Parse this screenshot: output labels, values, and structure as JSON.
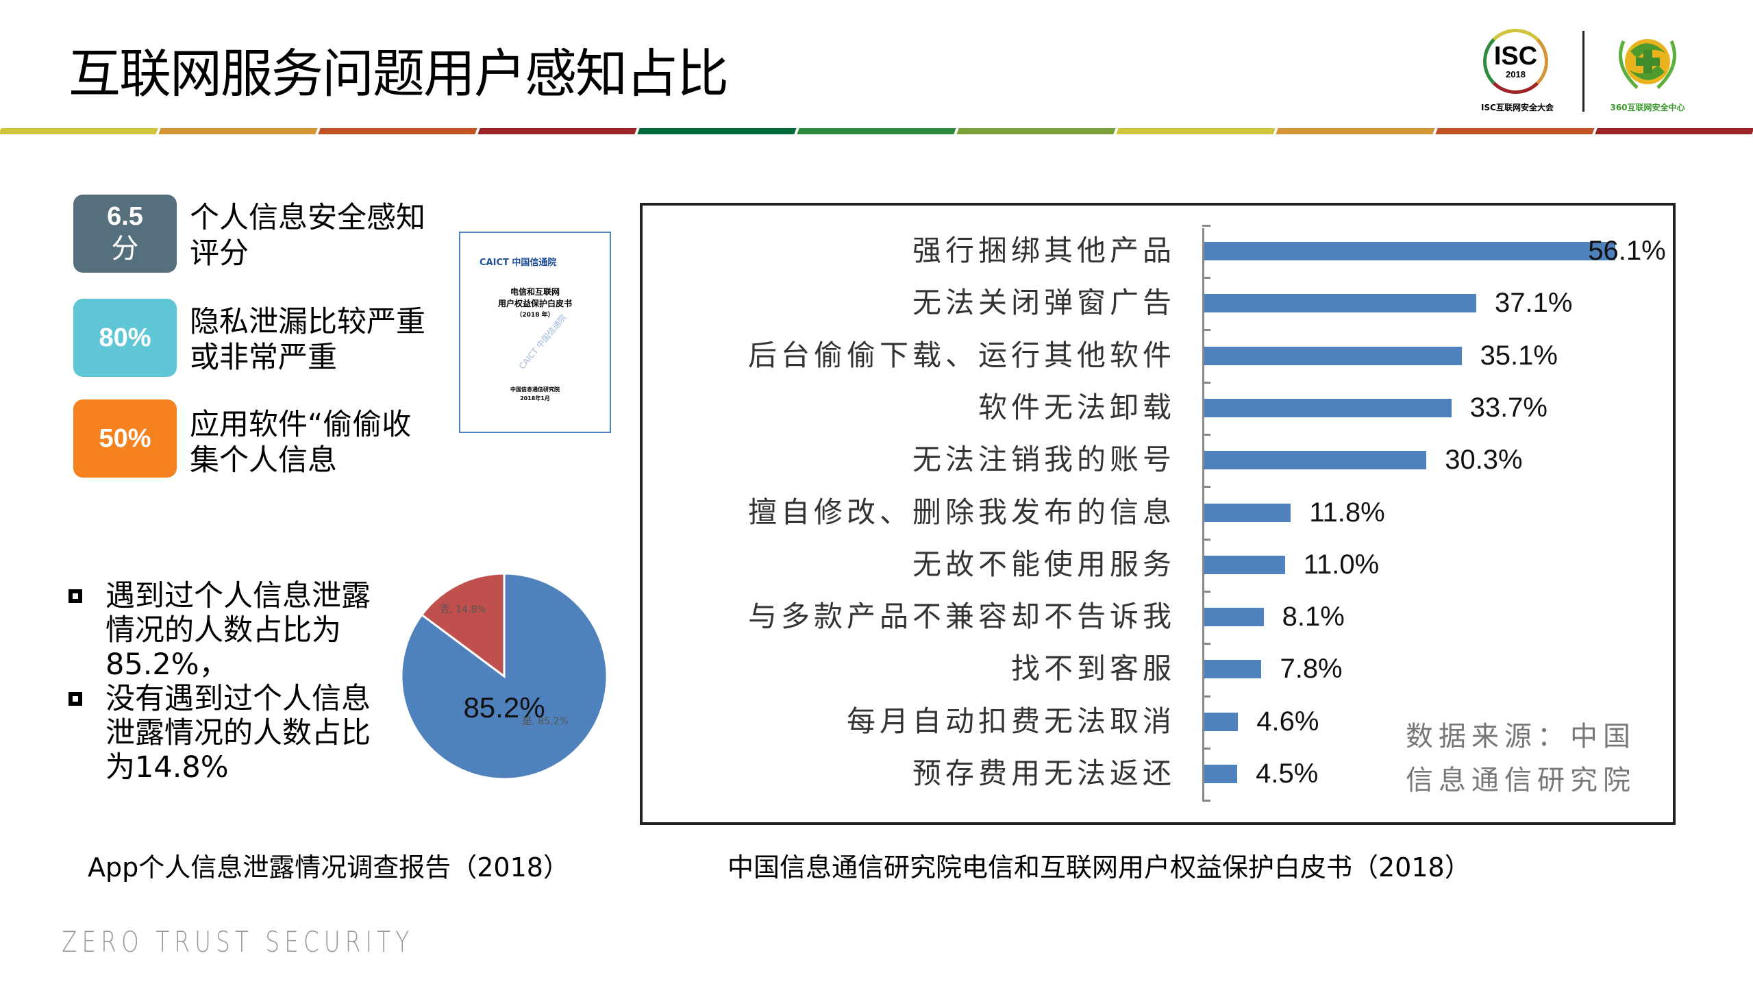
{
  "title": "互联网服务问题用户感知占比",
  "stripe_colors": [
    "#cfc43a",
    "#d39535",
    "#c05224",
    "#9c2425",
    "#036a3b",
    "#2e8b3e",
    "#7aa03a",
    "#cfc43a",
    "#d39535",
    "#c05224",
    "#9c2425"
  ],
  "logos": {
    "isc": {
      "big": "ISC",
      "year": "2018",
      "caption": "ISC互联网安全大会"
    },
    "q360": {
      "caption": "360互联网安全中心"
    }
  },
  "stats": [
    {
      "value": "6.5",
      "unit": "分",
      "text": "个人信息安全感知评分",
      "color": "#566f7c"
    },
    {
      "value": "80%",
      "unit": "",
      "text": "隐私泄漏比较严重或非常严重",
      "color": "#5ec6d5"
    },
    {
      "value": "50%",
      "unit": "",
      "text": "应用软件“偷偷收集个人信息",
      "color": "#f5821f"
    }
  ],
  "doc_thumb": {
    "brand": "CAICT 中国信通院",
    "title_line1": "电信和互联网",
    "title_line2": "用户权益保护白皮书",
    "title_line3": "（2018 年）",
    "watermark": "CAICT 中国信通院",
    "foot_line1": "中国信息通信研究院",
    "foot_line2": "2018年1月"
  },
  "bullets": [
    "遇到过个人信息泄露情况的人数占比为85.2%，",
    "没有遇到过个人信息泄露情况的人数占比为14.8%"
  ],
  "captions": {
    "left": "App个人信息泄露情况调查报告（2018）",
    "right": "中国信息通信研究院电信和互联网用户权益保护白皮书（2018）"
  },
  "footer": "ZERO TRUST SECURITY",
  "source_note": "数据来源：中国信息通信研究院",
  "chart_data": [
    {
      "type": "bar",
      "orientation": "horizontal",
      "title": "",
      "categories": [
        "强行捆绑其他产品",
        "无法关闭弹窗广告",
        "后台偷偷下载、运行其他软件",
        "软件无法卸载",
        "无法注销我的账号",
        "擅自修改、删除我发布的信息",
        "无故不能使用服务",
        "与多款产品不兼容却不告诉我",
        "找不到客服",
        "每月自动扣费无法取消",
        "预存费用无法返还"
      ],
      "values": [
        56.1,
        37.1,
        35.1,
        33.7,
        30.3,
        11.8,
        11.0,
        8.1,
        7.8,
        4.6,
        4.5
      ],
      "labels": [
        "56.1%",
        "37.1%",
        "35.1%",
        "33.7%",
        "30.3%",
        "11.8%",
        "11.0%",
        "8.1%",
        "7.8%",
        "4.6%",
        "4.5%"
      ],
      "xlabel": "",
      "ylabel": "",
      "color": "#4f81bd",
      "grid": false,
      "annotation": "数据来源：中国信息通信研究院"
    },
    {
      "type": "pie",
      "title": "",
      "categories": [
        "是",
        "否"
      ],
      "values": [
        85.2,
        14.8
      ],
      "labels": [
        "是, 85.2%",
        "否, 14.8%"
      ],
      "center_label": "85.2%",
      "colors": [
        "#4f81bd",
        "#c0504d"
      ]
    }
  ]
}
